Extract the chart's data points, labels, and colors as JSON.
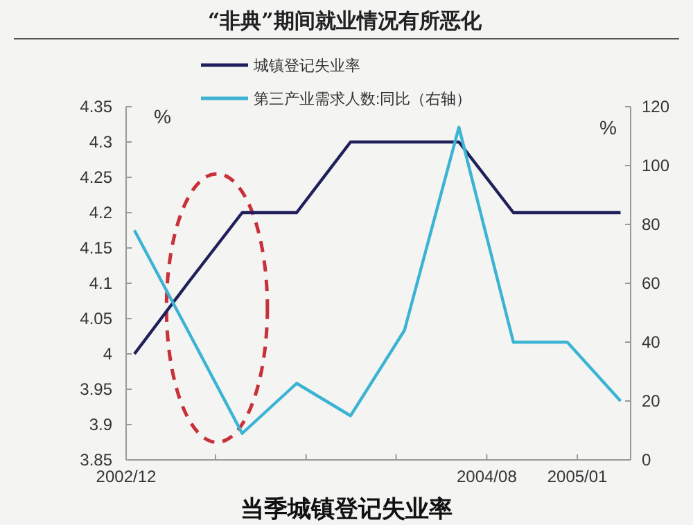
{
  "chart_data": {
    "type": "line",
    "title": "“非典”期间就业情况有所恶化",
    "ylabel": "%",
    "y2label": "%",
    "x": [
      "2002-12-15",
      "2003-03-15",
      "2003-06-15",
      "2003-09-15",
      "2003-12-15",
      "2004-03-15",
      "2004-06-15",
      "2004-09-15",
      "2004-12-15",
      "2005-03-15"
    ],
    "series": [
      {
        "name": "城镇登记失业率",
        "color": "#1f1f5c",
        "values": [
          4.0,
          4.1,
          4.2,
          4.2,
          4.3,
          4.3,
          4.3,
          4.2,
          4.2,
          4.2
        ]
      },
      {
        "name": "第三产业需求人数:同比（右轴）",
        "color": "#3bb4d4",
        "axis": "y2",
        "values": [
          78,
          44,
          9,
          26,
          15,
          44,
          113,
          40,
          40,
          20
        ]
      }
    ],
    "xlim": [
      "2002-12",
      "2005-04"
    ],
    "xticks": [
      {
        "value": "2002-12",
        "label": "2002/12"
      },
      {
        "value": "2003-05",
        "label": null
      },
      {
        "value": "2003-10",
        "label": null
      },
      {
        "value": "2004-03",
        "label": null
      },
      {
        "value": "2004-08",
        "label": "2004/08"
      },
      {
        "value": "2005-01",
        "label": "2005/01"
      }
    ],
    "ylim": [
      3.85,
      4.35
    ],
    "yticks": [
      3.85,
      3.9,
      3.95,
      4,
      4.05,
      4.1,
      4.15,
      4.2,
      4.25,
      4.3,
      4.35
    ],
    "y2lim": [
      0,
      120
    ],
    "y2ticks": [
      0,
      20,
      40,
      60,
      80,
      100,
      120
    ],
    "legend": "top",
    "grid": false,
    "marker": "none",
    "line_style": "solid",
    "annotations": [
      "当季城镇登记失业率"
    ]
  }
}
